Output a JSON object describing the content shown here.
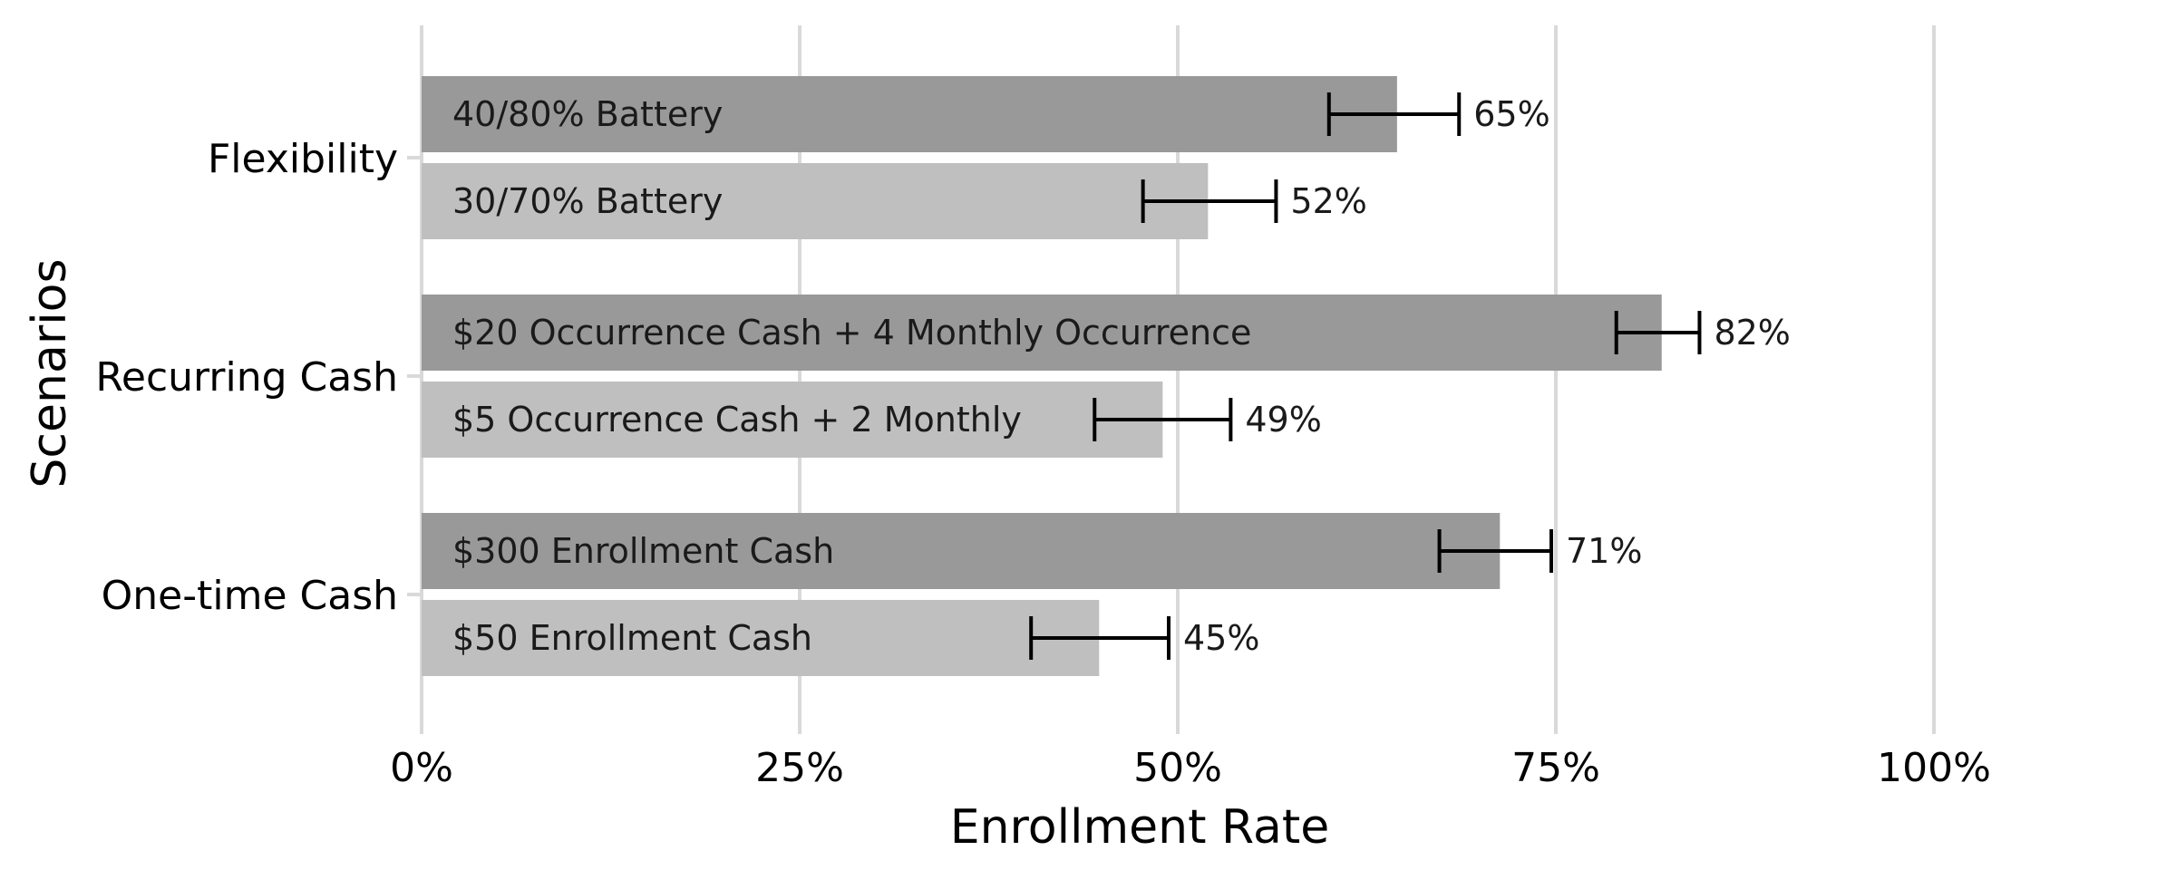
{
  "chart_data": {
    "type": "bar",
    "orientation": "horizontal",
    "xlabel": "Enrollment Rate",
    "ylabel": "Scenarios",
    "xlim": [
      0,
      1
    ],
    "x_ticks": [
      {
        "value": 0,
        "label": "0%"
      },
      {
        "value": 0.25,
        "label": "25%"
      },
      {
        "value": 0.5,
        "label": "50%"
      },
      {
        "value": 0.75,
        "label": "75%"
      },
      {
        "value": 1,
        "label": "100%"
      }
    ],
    "grid": "vertical",
    "colors": {
      "high": "#999999",
      "low": "#bfbfbf"
    },
    "groups": [
      {
        "name": "Flexibility",
        "bars": [
          {
            "label": "40/80% Battery",
            "value": 0.645,
            "value_label": "65%",
            "err_low": 0.6,
            "err_high": 0.686,
            "tier": "high"
          },
          {
            "label": "30/70% Battery",
            "value": 0.52,
            "value_label": "52%",
            "err_low": 0.477,
            "err_high": 0.565,
            "tier": "low"
          }
        ]
      },
      {
        "name": "Recurring Cash",
        "bars": [
          {
            "label": "$20 Occurrence Cash + 4 Monthly Occurrence",
            "value": 0.82,
            "value_label": "82%",
            "err_low": 0.79,
            "err_high": 0.845,
            "tier": "high"
          },
          {
            "label": "$5 Occurrence Cash + 2 Monthly",
            "value": 0.49,
            "value_label": "49%",
            "err_low": 0.445,
            "err_high": 0.535,
            "tier": "low"
          }
        ]
      },
      {
        "name": "One-time Cash",
        "bars": [
          {
            "label": "$300 Enrollment Cash",
            "value": 0.713,
            "value_label": "71%",
            "err_low": 0.673,
            "err_high": 0.747,
            "tier": "high"
          },
          {
            "label": "$50 Enrollment Cash",
            "value": 0.448,
            "value_label": "45%",
            "err_low": 0.403,
            "err_high": 0.494,
            "tier": "low"
          }
        ]
      }
    ]
  }
}
